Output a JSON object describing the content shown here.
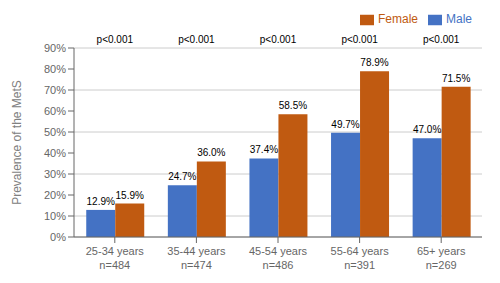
{
  "chart_data": {
    "type": "bar",
    "categories": [
      "25-34 years",
      "35-44 years",
      "45-54 years",
      "55-64 years",
      "65+ years"
    ],
    "sample_sizes": [
      "n=484",
      "n=474",
      "n=486",
      "n=391",
      "n=269"
    ],
    "series": [
      {
        "name": "Male",
        "color": "#4472C4",
        "values": [
          12.9,
          24.7,
          37.4,
          49.7,
          47.0
        ],
        "value_labels": [
          "12.9%",
          "24.7%",
          "37.4%",
          "49.7%",
          "47.0%"
        ]
      },
      {
        "name": "Female",
        "color": "#C05A11",
        "values": [
          15.9,
          36.0,
          58.5,
          78.9,
          71.5
        ],
        "value_labels": [
          "15.9%",
          "36.0%",
          "58.5%",
          "78.9%",
          "71.5%"
        ]
      }
    ],
    "ylabel": "Prevalence of the MetS",
    "ylim": [
      0,
      90
    ],
    "yticks": [
      {
        "value": 0,
        "label": "0%"
      },
      {
        "value": 10,
        "label": "10%"
      },
      {
        "value": 20,
        "label": "20%"
      },
      {
        "value": 30,
        "label": "30%"
      },
      {
        "value": 40,
        "label": "40%"
      },
      {
        "value": 50,
        "label": "50%"
      },
      {
        "value": 60,
        "label": "60%"
      },
      {
        "value": 70,
        "label": "70%"
      },
      {
        "value": 80,
        "label": "80%"
      },
      {
        "value": 90,
        "label": "90%"
      }
    ],
    "annotations": [
      {
        "text": "p<0.001",
        "category": "25-34 years"
      },
      {
        "text": "p<0.001",
        "category": "35-44 years"
      },
      {
        "text": "p<0.001",
        "category": "45-54 years"
      },
      {
        "text": "p<0.001",
        "category": "55-64 years"
      },
      {
        "text": "p<0.001",
        "category": "65+ years"
      }
    ],
    "data_labels": true,
    "grid": true,
    "legend": "upper right"
  }
}
